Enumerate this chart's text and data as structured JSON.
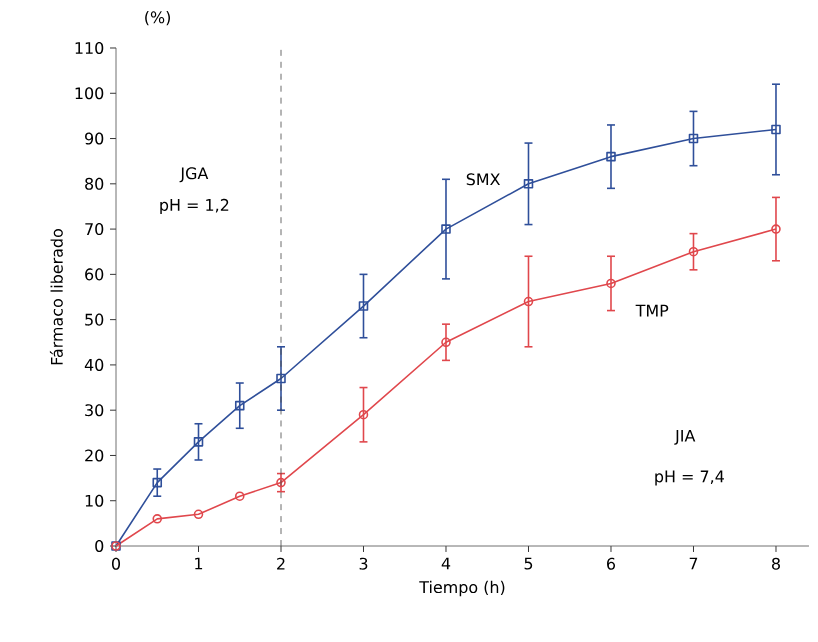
{
  "chart_data": {
    "type": "line",
    "xlabel": "Tiempo (h)",
    "ylabel": "Fármaco liberado",
    "x": [
      0,
      0.5,
      1,
      1.5,
      2,
      3,
      4,
      5,
      6,
      7,
      8
    ],
    "series": [
      {
        "name": "SMX",
        "color": "#2f4f9a",
        "marker": "square",
        "values": [
          0,
          14,
          23,
          31,
          37,
          53,
          70,
          80,
          86,
          90,
          92
        ],
        "errors": [
          null,
          3,
          4,
          5,
          7,
          7,
          11,
          9,
          7,
          6,
          10
        ]
      },
      {
        "name": "TMP",
        "color": "#e0474c",
        "marker": "circle",
        "values": [
          0,
          6,
          7,
          11,
          14,
          29,
          45,
          54,
          58,
          65,
          70
        ],
        "errors": [
          null,
          null,
          null,
          null,
          2,
          6,
          4,
          10,
          6,
          4,
          7
        ]
      }
    ],
    "xlim": [
      0,
      8.4
    ],
    "ylim": [
      0,
      110
    ],
    "xticks": [
      0,
      1,
      2,
      3,
      4,
      5,
      6,
      7,
      8
    ],
    "yticks": [
      0,
      10,
      20,
      30,
      40,
      50,
      60,
      70,
      80,
      90,
      100,
      110
    ],
    "ref_lines": [
      {
        "axis": "x",
        "value": 2,
        "color": "#444444",
        "line_style": "dashed"
      }
    ],
    "annotations": [
      "(%)",
      "JGA",
      "pH = 1,2",
      "JIA",
      "pH = 7,4"
    ],
    "grid": false,
    "line_style": "solid"
  }
}
